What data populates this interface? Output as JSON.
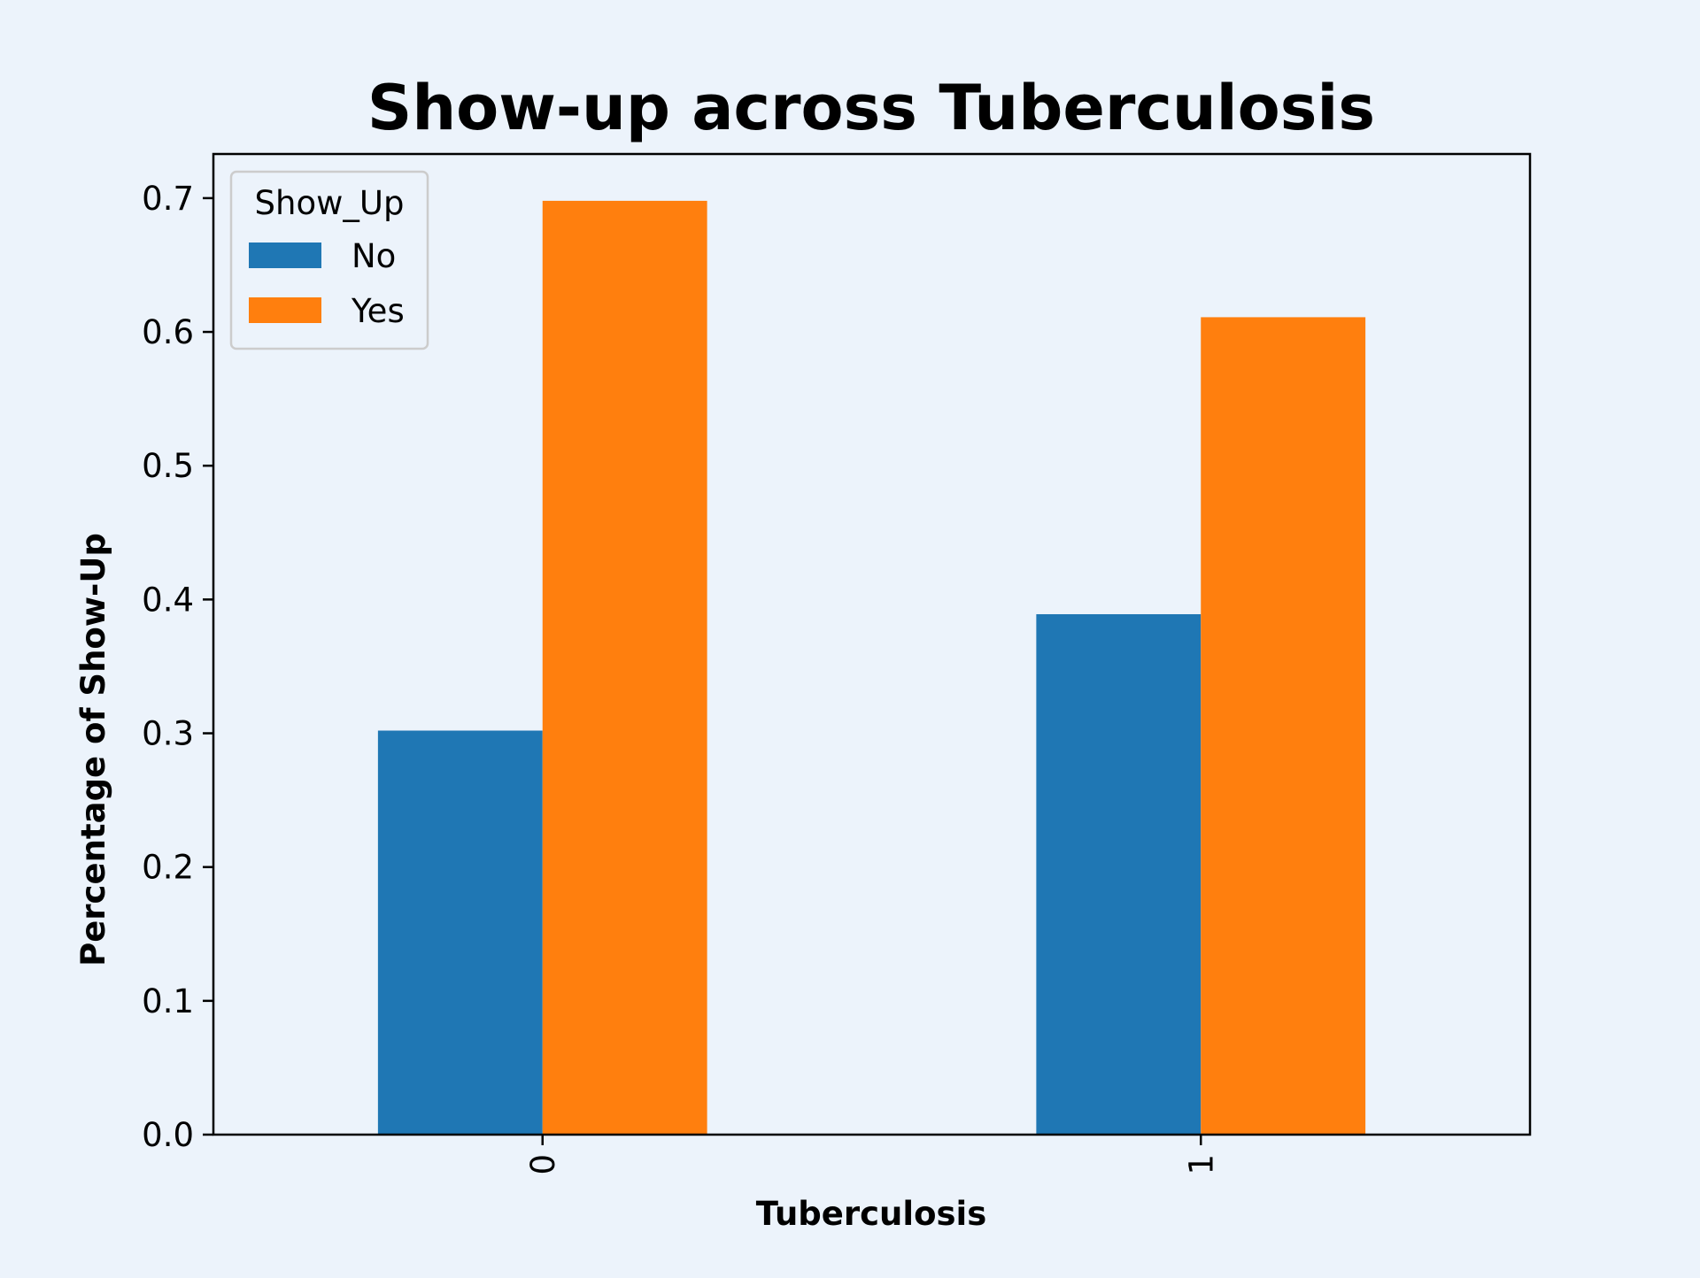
{
  "background_color": "#ecf3fb",
  "chart_data": {
    "type": "bar",
    "title": "Show-up across Tuberculosis",
    "xlabel": "Tuberculosis",
    "ylabel": "Percentage of Show-Up",
    "categories": [
      "0",
      "1"
    ],
    "series": [
      {
        "name": "No",
        "color": "#1f77b4",
        "values": [
          0.302,
          0.389
        ]
      },
      {
        "name": "Yes",
        "color": "#ff7f0e",
        "values": [
          0.698,
          0.611
        ]
      }
    ],
    "ylim": [
      0,
      0.733
    ],
    "yticks": [
      0.0,
      0.1,
      0.2,
      0.3,
      0.4,
      0.5,
      0.6,
      0.7
    ],
    "ytick_labels": [
      "0.0",
      "0.1",
      "0.2",
      "0.3",
      "0.4",
      "0.5",
      "0.6",
      "0.7"
    ],
    "xtick_rotation": "vertical",
    "legend": {
      "title": "Show_Up",
      "placement": "top-left"
    },
    "grid": false
  }
}
